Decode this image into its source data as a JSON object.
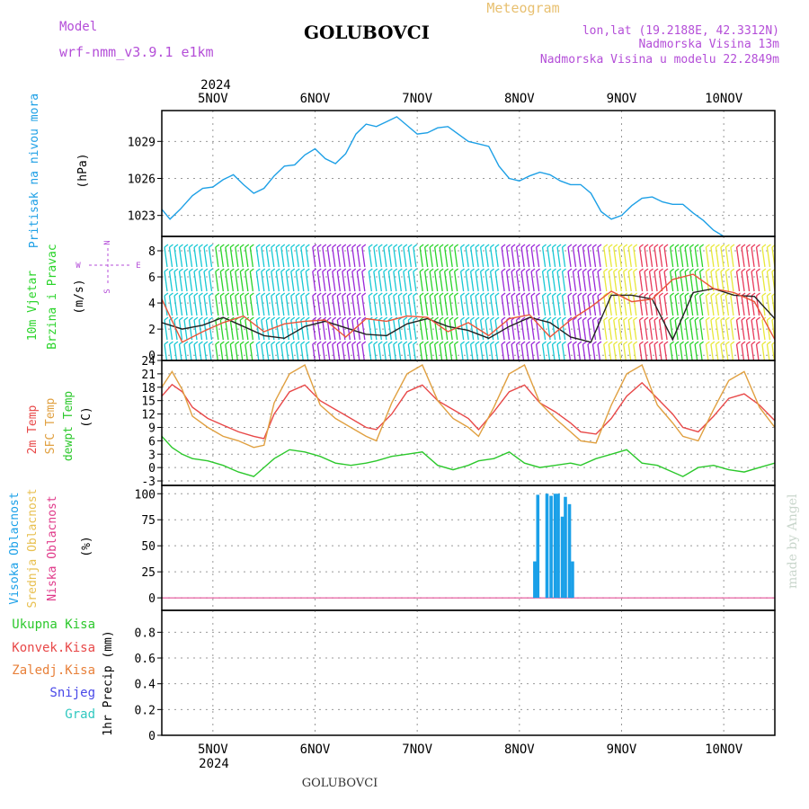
{
  "header": {
    "model_label": "Model",
    "model_name": "wrf-nmm_v3.9.1 e1km",
    "station": "GOLUBOVCI",
    "product": "Meteogram",
    "coords": "lon,lat (19.2188E, 42.3312N)",
    "elevation": "Nadmorska Visina 13m",
    "model_elevation": "Nadmorska Visina u modelu 22.2849m",
    "credit": "made by Angel",
    "footer_station": "GOLUBOVCI",
    "colors": {
      "model": "#b44ed8",
      "meta": "#b44ed8",
      "product": "#e8c070",
      "credit": "#c9d6cc"
    }
  },
  "time_axis": {
    "year": "2024",
    "days": [
      "5NOV",
      "6NOV",
      "7NOV",
      "8NOV",
      "9NOV",
      "10NOV"
    ],
    "day_offsets": [
      0.5,
      1.5,
      2.5,
      3.5,
      4.5,
      5.5
    ],
    "range": [
      0,
      6
    ]
  },
  "chart_data": [
    {
      "type": "line",
      "panel": "pressure",
      "label": "Pritisak na nivou mora",
      "unit": "(hPa)",
      "yticks": [
        1023,
        1026,
        1029
      ],
      "ylim": [
        1021.3,
        1031.5
      ],
      "grid": true,
      "series": [
        {
          "name": "Pritisak na nivou mora",
          "color": "#1ea0e6",
          "x": [
            0,
            0.08,
            0.18,
            0.3,
            0.4,
            0.5,
            0.6,
            0.7,
            0.8,
            0.9,
            1.0,
            1.1,
            1.2,
            1.3,
            1.4,
            1.5,
            1.6,
            1.7,
            1.8,
            1.9,
            2.0,
            2.1,
            2.2,
            2.3,
            2.4,
            2.5,
            2.6,
            2.7,
            2.8,
            2.9,
            3.0,
            3.1,
            3.2,
            3.3,
            3.4,
            3.5,
            3.6,
            3.7,
            3.8,
            3.9,
            4.0,
            4.1,
            4.2,
            4.3,
            4.4,
            4.5,
            4.6,
            4.7,
            4.8,
            4.9,
            5.0,
            5.1,
            5.2,
            5.3,
            5.4,
            5.5,
            5.6,
            5.7,
            5.8,
            5.9,
            6.0
          ],
          "y": [
            1023.5,
            1022.7,
            1023.5,
            1024.6,
            1025.2,
            1025.3,
            1025.9,
            1026.3,
            1025.5,
            1024.8,
            1025.2,
            1026.2,
            1027.0,
            1027.1,
            1027.9,
            1028.4,
            1027.6,
            1027.2,
            1028.0,
            1029.6,
            1030.4,
            1030.2,
            1030.6,
            1031.0,
            1030.3,
            1029.6,
            1029.7,
            1030.1,
            1030.2,
            1029.6,
            1029.0,
            1028.8,
            1028.6,
            1027.0,
            1026.0,
            1025.8,
            1026.2,
            1026.5,
            1026.3,
            1025.8,
            1025.5,
            1025.5,
            1024.8,
            1023.3,
            1022.7,
            1023.0,
            1023.8,
            1024.4,
            1024.5,
            1024.1,
            1023.9,
            1023.9,
            1023.2,
            1022.6,
            1021.8,
            1021.3,
            1021.3,
            1021.3,
            1021.3,
            1021.3,
            1021.3
          ]
        }
      ]
    },
    {
      "type": "line",
      "panel": "wind",
      "labels": [
        "10m Vjetar",
        "Brzina i Pravac"
      ],
      "unit": "(m/s)",
      "compass": {
        "north": "N",
        "south": "S",
        "east": "E",
        "west": "W"
      },
      "yticks": [
        0,
        2,
        4,
        6,
        8
      ],
      "ylim": [
        -0.4,
        9.1
      ],
      "grid": true,
      "barb_colors": {
        "low": "#17c9d4",
        "mid": "#9a28d8",
        "green": "#2ad42a",
        "strong": "#e8e83a",
        "gust": "#e83a5a"
      },
      "series": [
        {
          "name": "wind speed",
          "color": "#222222",
          "x": [
            0,
            0.2,
            0.4,
            0.6,
            0.8,
            1.0,
            1.2,
            1.4,
            1.6,
            1.8,
            2.0,
            2.2,
            2.4,
            2.6,
            2.8,
            3.0,
            3.2,
            3.4,
            3.6,
            3.8,
            4.0,
            4.2,
            4.4,
            4.6,
            4.8,
            5.0,
            5.2,
            5.4,
            5.6,
            5.8,
            6.0
          ],
          "y": [
            2.5,
            2.0,
            2.3,
            2.9,
            2.2,
            1.5,
            1.3,
            2.2,
            2.6,
            2.1,
            1.6,
            1.5,
            2.4,
            2.8,
            2.2,
            1.9,
            1.3,
            2.2,
            2.9,
            2.5,
            1.4,
            1.0,
            4.6,
            4.6,
            4.3,
            1.2,
            4.8,
            5.1,
            4.6,
            4.5,
            2.8
          ]
        },
        {
          "name": "wind gust",
          "color": "#e8553a",
          "x": [
            0,
            0.2,
            0.4,
            0.6,
            0.8,
            1.0,
            1.2,
            1.4,
            1.6,
            1.8,
            2.0,
            2.2,
            2.4,
            2.6,
            2.8,
            3.0,
            3.2,
            3.4,
            3.6,
            3.8,
            4.0,
            4.2,
            4.4,
            4.6,
            4.8,
            5.0,
            5.2,
            5.4,
            5.6,
            5.8,
            6.0
          ],
          "y": [
            4.3,
            1.0,
            1.8,
            2.5,
            3.0,
            1.8,
            2.4,
            2.6,
            2.7,
            1.4,
            2.8,
            2.6,
            3.0,
            2.9,
            1.8,
            2.5,
            1.5,
            2.8,
            3.1,
            1.4,
            2.7,
            3.7,
            4.9,
            4.1,
            4.3,
            5.8,
            6.2,
            5.1,
            4.8,
            4.1,
            1.2
          ]
        }
      ]
    },
    {
      "type": "line",
      "panel": "temperature",
      "labels": [
        "2m Temp",
        "SFC Temp",
        "dewpt Temp"
      ],
      "unit": "(C)",
      "yticks": [
        -3,
        0,
        3,
        6,
        9,
        12,
        15,
        18,
        21,
        24
      ],
      "ylim": [
        -4,
        24
      ],
      "grid": true,
      "series": [
        {
          "name": "2m Temp",
          "color": "#e84848",
          "x": [
            0,
            0.1,
            0.2,
            0.3,
            0.45,
            0.6,
            0.75,
            0.9,
            1.0,
            1.1,
            1.25,
            1.4,
            1.55,
            1.7,
            1.85,
            2.0,
            2.1,
            2.25,
            2.4,
            2.55,
            2.7,
            2.85,
            3.0,
            3.1,
            3.25,
            3.4,
            3.55,
            3.7,
            3.85,
            4.0,
            4.1,
            4.25,
            4.4,
            4.55,
            4.7,
            4.85,
            5.0,
            5.1,
            5.25,
            5.4,
            5.55,
            5.7,
            5.85,
            6.0
          ],
          "y": [
            16,
            18.6,
            17,
            13.5,
            11,
            9.5,
            8,
            7,
            6.5,
            12,
            17,
            18.5,
            15,
            13,
            11,
            9,
            8.5,
            12,
            17,
            18.5,
            15,
            13,
            11,
            8.5,
            12.5,
            17,
            18.5,
            14.5,
            12.5,
            10,
            8,
            7.5,
            11,
            16,
            19,
            15.5,
            12,
            9,
            8,
            11.5,
            15.5,
            16.5,
            14,
            10.5
          ]
        },
        {
          "name": "SFC Temp",
          "color": "#e0a040",
          "x": [
            0,
            0.1,
            0.2,
            0.3,
            0.45,
            0.6,
            0.75,
            0.9,
            1.0,
            1.1,
            1.25,
            1.4,
            1.55,
            1.7,
            1.85,
            2.0,
            2.1,
            2.25,
            2.4,
            2.55,
            2.7,
            2.85,
            3.0,
            3.1,
            3.25,
            3.4,
            3.55,
            3.7,
            3.85,
            4.0,
            4.1,
            4.25,
            4.4,
            4.55,
            4.7,
            4.85,
            5.0,
            5.1,
            5.25,
            5.4,
            5.55,
            5.7,
            5.85,
            6.0
          ],
          "y": [
            18,
            21.5,
            17.5,
            11.5,
            9,
            7,
            6,
            4.5,
            5,
            14.5,
            21,
            23,
            14,
            11,
            9,
            7,
            6,
            14.5,
            21,
            23,
            15,
            11,
            9,
            7,
            13.5,
            21,
            23,
            14.5,
            11,
            8,
            6,
            5.5,
            14,
            21,
            23,
            14,
            10,
            7,
            6,
            13,
            19.5,
            21.5,
            13.5,
            9
          ]
        },
        {
          "name": "dewpt Temp",
          "color": "#2cc82c",
          "x": [
            0,
            0.1,
            0.2,
            0.3,
            0.45,
            0.6,
            0.75,
            0.9,
            1.0,
            1.1,
            1.25,
            1.4,
            1.55,
            1.7,
            1.85,
            2.0,
            2.1,
            2.25,
            2.4,
            2.55,
            2.7,
            2.85,
            3.0,
            3.1,
            3.25,
            3.4,
            3.55,
            3.7,
            3.85,
            4.0,
            4.1,
            4.25,
            4.4,
            4.55,
            4.7,
            4.85,
            5.0,
            5.1,
            5.25,
            5.4,
            5.55,
            5.7,
            5.85,
            6.0
          ],
          "y": [
            7,
            4.5,
            3,
            2,
            1.5,
            0.5,
            -1,
            -2,
            0,
            2,
            4,
            3.5,
            2.5,
            1,
            0.5,
            1,
            1.5,
            2.5,
            3,
            3.5,
            0.5,
            -0.5,
            0.5,
            1.5,
            2,
            3.5,
            1,
            0,
            0.5,
            1,
            0.5,
            2,
            3,
            4,
            1,
            0.5,
            -1,
            -2,
            0,
            0.5,
            -0.5,
            -1,
            0,
            1
          ]
        }
      ]
    },
    {
      "type": "bar",
      "panel": "cloud",
      "labels": [
        "Visoka Oblacnost",
        "Srednja Oblacnost",
        "Niska Oblacnost"
      ],
      "unit": "(%)",
      "yticks": [
        0,
        25,
        50,
        75,
        100
      ],
      "ylim": [
        -12,
        108
      ],
      "grid": true,
      "series": [
        {
          "name": "Visoka Oblacnost",
          "color": "#1aa0e8",
          "x": [
            3.65,
            3.68,
            3.72,
            3.77,
            3.81,
            3.85,
            3.88,
            3.92,
            3.95,
            3.99,
            4.02,
            4.06
          ],
          "y": [
            35,
            99,
            0,
            100,
            98,
            100,
            100,
            78,
            97,
            90,
            35,
            0
          ]
        },
        {
          "name": "Srednja Oblacnost",
          "color": "#e8c050",
          "x": [],
          "y": []
        },
        {
          "name": "Niska Oblacnost",
          "color": "#e03a8a",
          "x": [],
          "y": []
        }
      ]
    },
    {
      "type": "bar",
      "panel": "precip",
      "labels": [
        "Ukupna Kisa",
        "Konvek.Kisa",
        "Zaledj.Kisa",
        "Snijeg",
        "Grad"
      ],
      "label_colors": [
        "#2cc82c",
        "#e84848",
        "#e8803a",
        "#4848e8",
        "#30c8c0"
      ],
      "unit": "1hr Precip (mm)",
      "yticks": [
        0,
        0.2,
        0.4,
        0.6,
        0.8
      ],
      "ylim": [
        0,
        0.97
      ],
      "grid": true,
      "series": []
    }
  ]
}
